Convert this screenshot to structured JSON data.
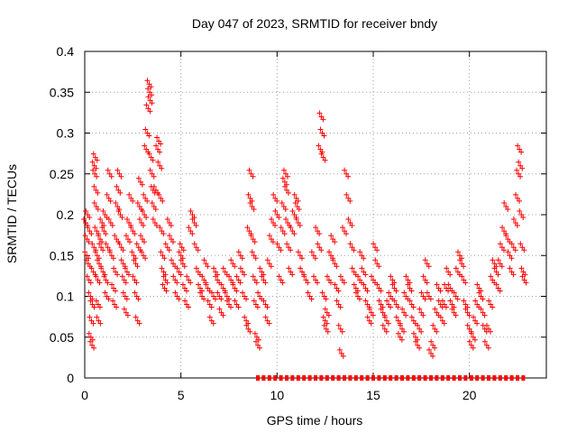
{
  "chart_data": {
    "type": "scatter",
    "title": "Day 047 of 2023, SRMTID for receiver bndy",
    "xlabel": "GPS time / hours",
    "ylabel": "SRMTID / TECUs",
    "xlim": [
      0,
      24
    ],
    "ylim": [
      0,
      0.4
    ],
    "xticks": [
      0,
      5,
      10,
      15,
      20
    ],
    "xtick_labels": [
      "0",
      "5",
      "10",
      "15",
      "20"
    ],
    "yticks": [
      0,
      0.05,
      0.1,
      0.15,
      0.2,
      0.25,
      0.3,
      0.35,
      0.4
    ],
    "ytick_labels": [
      "0",
      "0.05",
      "0.1",
      "0.15",
      "0.2",
      "0.25",
      "0.3",
      "0.35",
      "0.4"
    ],
    "grid": true,
    "marker": "+",
    "marker_color": "#ff0000",
    "series": [
      {
        "name": "SRMTID",
        "points": [
          [
            0.05,
            0.19
          ],
          [
            0.1,
            0.15
          ],
          [
            0.12,
            0.17
          ],
          [
            0.15,
            0.2
          ],
          [
            0.18,
            0.14
          ],
          [
            0.22,
            0.12
          ],
          [
            0.25,
            0.18
          ],
          [
            0.3,
            0.1
          ],
          [
            0.32,
            0.05
          ],
          [
            0.35,
            0.07
          ],
          [
            0.38,
            0.04
          ],
          [
            0.4,
            0.09
          ],
          [
            0.45,
            0.13
          ],
          [
            0.48,
            0.16
          ],
          [
            0.5,
            0.26
          ],
          [
            0.52,
            0.25
          ],
          [
            0.55,
            0.27
          ],
          [
            0.58,
            0.23
          ],
          [
            0.6,
            0.21
          ],
          [
            0.62,
            0.18
          ],
          [
            0.65,
            0.15
          ],
          [
            0.68,
            0.12
          ],
          [
            0.7,
            0.09
          ],
          [
            0.72,
            0.07
          ],
          [
            0.75,
            0.14
          ],
          [
            0.8,
            0.17
          ],
          [
            0.85,
            0.16
          ],
          [
            0.9,
            0.19
          ],
          [
            0.95,
            0.13
          ],
          [
            1.0,
            0.18
          ],
          [
            1.05,
            0.2
          ],
          [
            1.1,
            0.12
          ],
          [
            1.15,
            0.1
          ],
          [
            1.2,
            0.16
          ],
          [
            1.25,
            0.22
          ],
          [
            1.3,
            0.25
          ],
          [
            1.35,
            0.19
          ],
          [
            1.4,
            0.15
          ],
          [
            1.5,
            0.11
          ],
          [
            1.55,
            0.09
          ],
          [
            1.6,
            0.13
          ],
          [
            1.65,
            0.17
          ],
          [
            1.7,
            0.21
          ],
          [
            1.75,
            0.23
          ],
          [
            1.8,
            0.25
          ],
          [
            1.85,
            0.2
          ],
          [
            1.9,
            0.16
          ],
          [
            2.0,
            0.14
          ],
          [
            2.05,
            0.12
          ],
          [
            2.1,
            0.1
          ],
          [
            2.15,
            0.08
          ],
          [
            2.2,
            0.13
          ],
          [
            2.25,
            0.17
          ],
          [
            2.3,
            0.19
          ],
          [
            2.4,
            0.22
          ],
          [
            2.5,
            0.18
          ],
          [
            2.55,
            0.15
          ],
          [
            2.6,
            0.12
          ],
          [
            2.65,
            0.14
          ],
          [
            2.7,
            0.1
          ],
          [
            2.75,
            0.07
          ],
          [
            2.8,
            0.16
          ],
          [
            2.85,
            0.21
          ],
          [
            2.9,
            0.24
          ],
          [
            2.95,
            0.19
          ],
          [
            3.0,
            0.17
          ],
          [
            3.05,
            0.15
          ],
          [
            3.1,
            0.2
          ],
          [
            3.15,
            0.22
          ],
          [
            3.2,
            0.28
          ],
          [
            3.25,
            0.3
          ],
          [
            3.3,
            0.33
          ],
          [
            3.35,
            0.36
          ],
          [
            3.38,
            0.35
          ],
          [
            3.4,
            0.34
          ],
          [
            3.45,
            0.27
          ],
          [
            3.5,
            0.25
          ],
          [
            3.55,
            0.23
          ],
          [
            3.6,
            0.21
          ],
          [
            3.65,
            0.19
          ],
          [
            3.7,
            0.23
          ],
          [
            3.8,
            0.28
          ],
          [
            3.85,
            0.29
          ],
          [
            3.9,
            0.26
          ],
          [
            3.95,
            0.22
          ],
          [
            4.0,
            0.18
          ],
          [
            4.05,
            0.15
          ],
          [
            4.1,
            0.13
          ],
          [
            4.15,
            0.11
          ],
          [
            4.2,
            0.12
          ],
          [
            4.3,
            0.16
          ],
          [
            4.4,
            0.19
          ],
          [
            4.5,
            0.17
          ],
          [
            4.6,
            0.14
          ],
          [
            4.7,
            0.12
          ],
          [
            4.8,
            0.1
          ],
          [
            4.9,
            0.13
          ],
          [
            5.0,
            0.15
          ],
          [
            5.05,
            0.16
          ],
          [
            5.1,
            0.14
          ],
          [
            5.2,
            0.11
          ],
          [
            5.3,
            0.09
          ],
          [
            5.4,
            0.12
          ],
          [
            5.5,
            0.18
          ],
          [
            5.6,
            0.2
          ],
          [
            5.7,
            0.19
          ],
          [
            5.8,
            0.16
          ],
          [
            5.9,
            0.13
          ],
          [
            6.0,
            0.11
          ],
          [
            6.1,
            0.1
          ],
          [
            6.2,
            0.12
          ],
          [
            6.3,
            0.14
          ],
          [
            6.4,
            0.11
          ],
          [
            6.5,
            0.09
          ],
          [
            6.6,
            0.07
          ],
          [
            6.7,
            0.1
          ],
          [
            6.8,
            0.13
          ],
          [
            6.9,
            0.12
          ],
          [
            7.0,
            0.1
          ],
          [
            7.1,
            0.08
          ],
          [
            7.2,
            0.11
          ],
          [
            7.3,
            0.13
          ],
          [
            7.4,
            0.1
          ],
          [
            7.5,
            0.09
          ],
          [
            7.6,
            0.12
          ],
          [
            7.7,
            0.14
          ],
          [
            7.8,
            0.11
          ],
          [
            7.9,
            0.09
          ],
          [
            8.0,
            0.12
          ],
          [
            8.1,
            0.15
          ],
          [
            8.2,
            0.13
          ],
          [
            8.3,
            0.1
          ],
          [
            8.4,
            0.07
          ],
          [
            8.5,
            0.06
          ],
          [
            8.55,
            0.18
          ],
          [
            8.6,
            0.22
          ],
          [
            8.65,
            0.25
          ],
          [
            8.7,
            0.21
          ],
          [
            8.75,
            0.17
          ],
          [
            8.8,
            0.15
          ],
          [
            8.85,
            0.12
          ],
          [
            8.9,
            0.09
          ],
          [
            8.95,
            0.05
          ],
          [
            9.0,
            0.04
          ],
          [
            9.1,
            0.1
          ],
          [
            9.2,
            0.13
          ],
          [
            9.3,
            0.12
          ],
          [
            9.4,
            0.09
          ],
          [
            9.5,
            0.07
          ],
          [
            9.6,
            0.14
          ],
          [
            9.7,
            0.17
          ],
          [
            9.8,
            0.19
          ],
          [
            9.9,
            0.22
          ],
          [
            10.0,
            0.2
          ],
          [
            10.1,
            0.16
          ],
          [
            10.2,
            0.12
          ],
          [
            10.3,
            0.18
          ],
          [
            10.35,
            0.21
          ],
          [
            10.4,
            0.24
          ],
          [
            10.45,
            0.25
          ],
          [
            10.5,
            0.23
          ],
          [
            10.55,
            0.19
          ],
          [
            10.6,
            0.16
          ],
          [
            10.7,
            0.13
          ],
          [
            10.8,
            0.18
          ],
          [
            10.9,
            0.2
          ],
          [
            11.0,
            0.22
          ],
          [
            11.05,
            0.21
          ],
          [
            11.1,
            0.19
          ],
          [
            11.2,
            0.15
          ],
          [
            11.3,
            0.13
          ],
          [
            11.5,
            0.12
          ],
          [
            11.7,
            0.1
          ],
          [
            11.9,
            0.15
          ],
          [
            12.0,
            0.12
          ],
          [
            12.1,
            0.18
          ],
          [
            12.2,
            0.16
          ],
          [
            12.25,
            0.28
          ],
          [
            12.3,
            0.32
          ],
          [
            12.35,
            0.3
          ],
          [
            12.4,
            0.27
          ],
          [
            12.45,
            0.1
          ],
          [
            12.5,
            0.07
          ],
          [
            12.55,
            0.06
          ],
          [
            12.6,
            0.08
          ],
          [
            12.7,
            0.12
          ],
          [
            12.8,
            0.15
          ],
          [
            12.9,
            0.17
          ],
          [
            13.0,
            0.14
          ],
          [
            13.1,
            0.11
          ],
          [
            13.2,
            0.09
          ],
          [
            13.3,
            0.06
          ],
          [
            13.35,
            0.03
          ],
          [
            13.4,
            0.12
          ],
          [
            13.5,
            0.18
          ],
          [
            13.6,
            0.25
          ],
          [
            13.7,
            0.22
          ],
          [
            13.8,
            0.19
          ],
          [
            13.9,
            0.16
          ],
          [
            14.0,
            0.13
          ],
          [
            14.1,
            0.11
          ],
          [
            14.2,
            0.1
          ],
          [
            14.3,
            0.12
          ],
          [
            14.4,
            0.15
          ],
          [
            14.5,
            0.13
          ],
          [
            14.6,
            0.11
          ],
          [
            14.7,
            0.09
          ],
          [
            14.8,
            0.07
          ],
          [
            14.9,
            0.08
          ],
          [
            15.0,
            0.12
          ],
          [
            15.1,
            0.16
          ],
          [
            15.2,
            0.14
          ],
          [
            15.3,
            0.11
          ],
          [
            15.4,
            0.09
          ],
          [
            15.5,
            0.08
          ],
          [
            15.6,
            0.06
          ],
          [
            15.7,
            0.07
          ],
          [
            15.8,
            0.09
          ],
          [
            15.9,
            0.1
          ],
          [
            16.0,
            0.12
          ],
          [
            16.1,
            0.11
          ],
          [
            16.2,
            0.09
          ],
          [
            16.3,
            0.07
          ],
          [
            16.4,
            0.05
          ],
          [
            16.5,
            0.06
          ],
          [
            16.6,
            0.08
          ],
          [
            16.7,
            0.1
          ],
          [
            16.8,
            0.12
          ],
          [
            16.9,
            0.11
          ],
          [
            17.0,
            0.09
          ],
          [
            17.1,
            0.07
          ],
          [
            17.2,
            0.05
          ],
          [
            17.3,
            0.04
          ],
          [
            17.4,
            0.06
          ],
          [
            17.5,
            0.08
          ],
          [
            17.6,
            0.1
          ],
          [
            17.7,
            0.12
          ],
          [
            17.8,
            0.14
          ],
          [
            17.9,
            0.1
          ],
          [
            18.0,
            0.03
          ],
          [
            18.1,
            0.04
          ],
          [
            18.2,
            0.06
          ],
          [
            18.3,
            0.08
          ],
          [
            18.4,
            0.11
          ],
          [
            18.5,
            0.09
          ],
          [
            18.6,
            0.07
          ],
          [
            18.7,
            0.09
          ],
          [
            18.8,
            0.11
          ],
          [
            18.9,
            0.13
          ],
          [
            19.0,
            0.11
          ],
          [
            19.1,
            0.09
          ],
          [
            19.2,
            0.08
          ],
          [
            19.3,
            0.1
          ],
          [
            19.4,
            0.13
          ],
          [
            19.5,
            0.15
          ],
          [
            19.6,
            0.14
          ],
          [
            19.7,
            0.12
          ],
          [
            19.8,
            0.09
          ],
          [
            19.9,
            0.08
          ],
          [
            20.0,
            0.06
          ],
          [
            20.1,
            0.04
          ],
          [
            20.2,
            0.05
          ],
          [
            20.3,
            0.07
          ],
          [
            20.4,
            0.09
          ],
          [
            20.5,
            0.11
          ],
          [
            20.6,
            0.1
          ],
          [
            20.7,
            0.08
          ],
          [
            20.8,
            0.06
          ],
          [
            20.9,
            0.04
          ],
          [
            21.0,
            0.06
          ],
          [
            21.1,
            0.09
          ],
          [
            21.2,
            0.12
          ],
          [
            21.3,
            0.14
          ],
          [
            21.4,
            0.13
          ],
          [
            21.5,
            0.11
          ],
          [
            21.6,
            0.14
          ],
          [
            21.7,
            0.16
          ],
          [
            21.8,
            0.18
          ],
          [
            21.9,
            0.21
          ],
          [
            22.0,
            0.17
          ],
          [
            22.1,
            0.15
          ],
          [
            22.2,
            0.13
          ],
          [
            22.3,
            0.16
          ],
          [
            22.4,
            0.19
          ],
          [
            22.5,
            0.22
          ],
          [
            22.55,
            0.25
          ],
          [
            22.6,
            0.28
          ],
          [
            22.65,
            0.26
          ],
          [
            22.7,
            0.2
          ],
          [
            22.75,
            0.16
          ],
          [
            22.8,
            0.13
          ],
          [
            22.85,
            0.12
          ]
        ]
      }
    ],
    "zero_points_x": [
      9.0,
      9.3,
      9.6,
      9.9,
      10.2,
      10.5,
      10.8,
      11.1,
      11.4,
      11.7,
      12.0,
      12.3,
      12.6,
      12.9,
      13.2,
      13.5,
      13.8,
      14.1,
      14.4,
      14.7,
      15.0,
      15.3,
      15.6,
      15.9,
      16.2,
      16.5,
      16.8,
      17.1,
      17.4,
      17.7,
      18.0,
      18.3,
      18.6,
      18.9,
      19.2,
      19.5,
      19.8,
      20.1,
      20.4,
      20.7,
      21.0,
      21.3,
      21.6,
      21.9,
      22.2,
      22.5,
      22.8
    ]
  }
}
